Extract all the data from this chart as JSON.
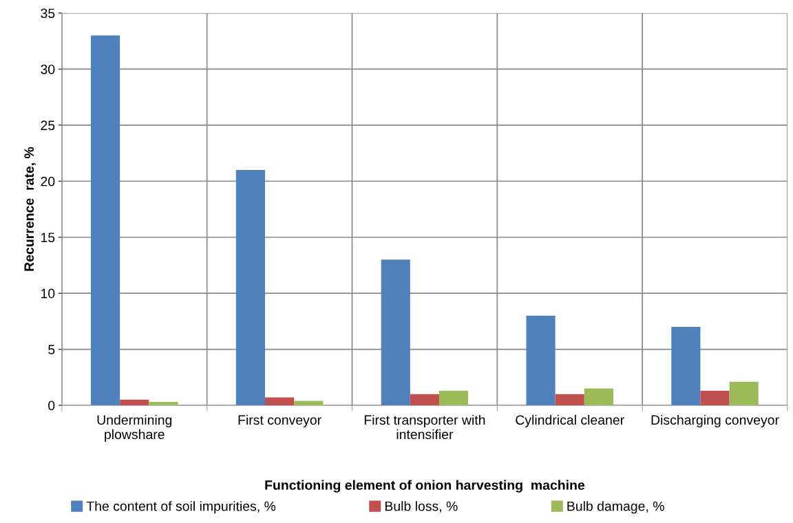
{
  "chart_data": {
    "type": "bar",
    "xlabel": "Functioning element of onion harvesting  machine",
    "ylabel": "Recurrence  rate, %",
    "categories": [
      "Undermining\nplowshare",
      "First conveyor",
      "First transporter with\nintensifier",
      "Cylindrical cleaner",
      "Discharging conveyor"
    ],
    "series": [
      {
        "name": "The content of soil impurities, %",
        "color": "#4f81bd",
        "values": [
          33,
          21,
          13,
          8,
          7
        ]
      },
      {
        "name": "Bulb loss, %",
        "color": "#c0504d",
        "values": [
          0.5,
          0.7,
          1.0,
          1.0,
          1.3
        ]
      },
      {
        "name": "Bulb damage, %",
        "color": "#9bbb59",
        "values": [
          0.3,
          0.4,
          1.3,
          1.5,
          2.1
        ]
      }
    ],
    "ylim": [
      0,
      35
    ],
    "yticks": [
      0,
      5,
      10,
      15,
      20,
      25,
      30,
      35
    ],
    "grid": true,
    "legend": "bottom"
  }
}
